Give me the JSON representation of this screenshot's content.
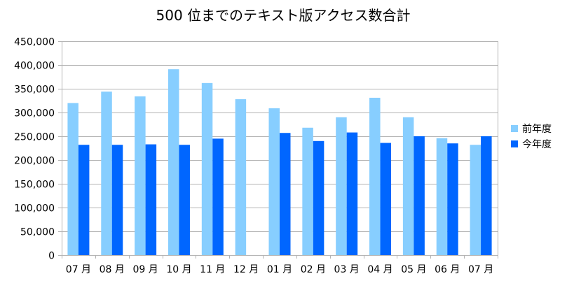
{
  "chart_data": {
    "type": "bar",
    "title": "500 位までのテキスト版アクセス数合計",
    "categories": [
      "07 月",
      "08 月",
      "09 月",
      "10 月",
      "11 月",
      "12 月",
      "01 月",
      "02 月",
      "03 月",
      "04 月",
      "05 月",
      "06 月",
      "07 月"
    ],
    "series": [
      {
        "name": "前年度",
        "color": "#87ceff",
        "values": [
          320000,
          344000,
          334000,
          391000,
          362000,
          328000,
          309000,
          268000,
          290000,
          331000,
          290000,
          246000,
          232000
        ]
      },
      {
        "name": "今年度",
        "color": "#0066ff",
        "values": [
          232000,
          232000,
          233000,
          232000,
          245000,
          null,
          257000,
          240000,
          258000,
          236000,
          250000,
          235000,
          250000
        ]
      }
    ],
    "ylim": [
      0,
      450000
    ],
    "yticks": [
      0,
      50000,
      100000,
      150000,
      200000,
      250000,
      300000,
      350000,
      400000,
      450000
    ],
    "ytick_labels": [
      "0",
      "50,000",
      "100,000",
      "150,000",
      "200,000",
      "250,000",
      "300,000",
      "350,000",
      "400,000",
      "450,000"
    ],
    "grid": true,
    "legend": "right"
  }
}
